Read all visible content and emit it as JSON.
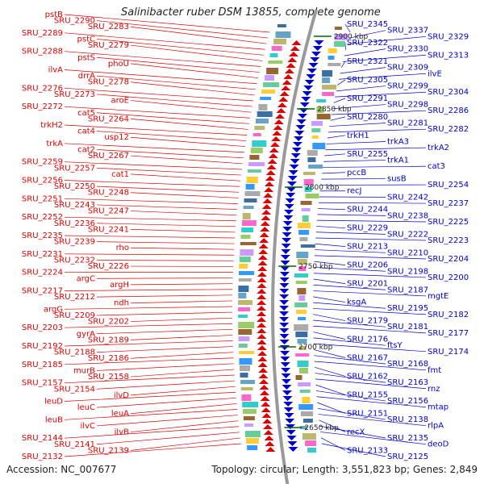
{
  "title": "Salinibacter ruber DSM 13855, complete genome",
  "accession": "Accession: NC_007677",
  "topology": "Topology: circular; Length: 3,551,823 bp; Genes: 2,849",
  "colors": {
    "left_strand": "#dd0000",
    "right_strand": "#0000cc",
    "axis": "#999999",
    "tick": "#006600"
  },
  "kbp_ticks": [
    "2900 kbp",
    "2850 kbp",
    "2800 kbp",
    "2750 kbp",
    "2700 kbp",
    "2650 kbp"
  ],
  "left_labels": [
    "pstB",
    "SRU_2290",
    "SRU_2283",
    "SRU_2289",
    "pstC",
    "SRU_2279",
    "SRU_2288",
    "pstS",
    "phoU",
    "ilvA",
    "drrA",
    "SRU_2278",
    "SRU_2276",
    "SRU_2273",
    "aroE",
    "SRU_2272",
    "cat5",
    "SRU_2264",
    "trkH2",
    "cat4",
    "usp12",
    "trkA",
    "cat2",
    "SRU_2267",
    "SRU_2259",
    "SRU_2257",
    "cat1",
    "SRU_2256",
    "SRU_2250",
    "SRU_2248",
    "SRU_2251",
    "SRU_2243",
    "SRU_2247",
    "SRU_2252",
    "SRU_2236",
    "SRU_2241",
    "SRU_2235",
    "SRU_2239",
    "rho",
    "SRU_2231",
    "SRU_2232",
    "SRU_2226",
    "SRU_2224",
    "argC",
    "argH",
    "SRU_2217",
    "SRU_2212",
    "ndh",
    "argG",
    "SRU_2209",
    "SRU_2202",
    "SRU_2203",
    "gyrA",
    "SRU_2189",
    "SRU_2192",
    "SRU_2188",
    "SRU_2186",
    "SRU_2185",
    "murB",
    "SRU_2158",
    "SRU_2157",
    "SRU_2154",
    "ilvD",
    "leuD",
    "leuC",
    "leuA",
    "leuB",
    "ilvC",
    "ilvB",
    "SRU_2144",
    "SRU_2141",
    "SRU_2139",
    "SRU_2132"
  ],
  "right_labels": [
    "SRU_2345",
    "SRU_2337",
    "SRU_2329",
    "SRU_2322",
    "SRU_2330",
    "SRU_2313",
    "SRU_2321",
    "SRU_2309",
    "ilvE",
    "SRU_2305",
    "SRU_2299",
    "SRU_2304",
    "SRU_2291",
    "SRU_2298",
    "SRU_2286",
    "SRU_2280",
    "SRU_2281",
    "SRU_2282",
    "trkH1",
    "trkA3",
    "trkA2",
    "SRU_2255",
    "trkA1",
    "cat3",
    "pccB",
    "susB",
    "SRU_2254",
    "recJ",
    "SRU_2242",
    "SRU_2237",
    "SRU_2244",
    "SRU_2238",
    "SRU_2225",
    "SRU_2229",
    "SRU_2222",
    "SRU_2223",
    "SRU_2213",
    "SRU_2210",
    "SRU_2204",
    "SRU_2206",
    "SRU_2198",
    "SRU_2200",
    "SRU_2201",
    "SRU_2187",
    "mgtE",
    "ksgA",
    "SRU_2195",
    "SRU_2182",
    "SRU_2179",
    "SRU_2181",
    "SRU_2177",
    "SRU_2176",
    "ftsY",
    "SRU_2174",
    "SRU_2167",
    "SRU_2168",
    "fmt",
    "SRU_2162",
    "SRU_2163",
    "rnz",
    "SRU_2155",
    "SRU_2156",
    "mtap",
    "SRU_2151",
    "SRU_2138",
    "rlpA",
    "recX",
    "SRU_2135",
    "deoD",
    "SRU_2133",
    "SRU_2125"
  ]
}
